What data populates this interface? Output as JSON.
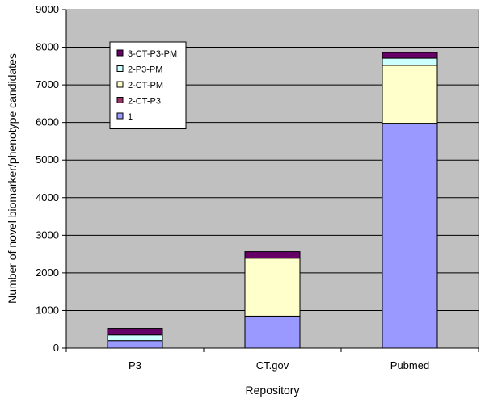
{
  "chart_data": {
    "type": "bar",
    "stacked": true,
    "categories": [
      "P3",
      "CT.gov",
      "Pubmed"
    ],
    "series": [
      {
        "name": "1",
        "color": "#9999ff",
        "values": [
          200,
          850,
          5980
        ]
      },
      {
        "name": "2-CT-P3",
        "color": "#993366",
        "values": [
          0,
          0,
          0
        ]
      },
      {
        "name": "2-CT-PM",
        "color": "#ffffcc",
        "values": [
          0,
          1540,
          1540
        ]
      },
      {
        "name": "2-P3-PM",
        "color": "#ccffff",
        "values": [
          150,
          0,
          190
        ]
      },
      {
        "name": "3-CT-P3-PM",
        "color": "#660066",
        "values": [
          175,
          175,
          150
        ]
      }
    ],
    "title": "",
    "xlabel": "Repository",
    "ylabel": "Number of novel biomarker/phenotype candidates",
    "ylim": [
      0,
      9000
    ],
    "yticks": [
      0,
      1000,
      2000,
      3000,
      4000,
      5000,
      6000,
      7000,
      8000,
      9000
    ],
    "grid": true,
    "plot_background": "#c0c0c0",
    "legend_position": "top-left",
    "legend_order": [
      "3-CT-P3-PM",
      "2-P3-PM",
      "2-CT-PM",
      "2-CT-P3",
      "1"
    ]
  }
}
